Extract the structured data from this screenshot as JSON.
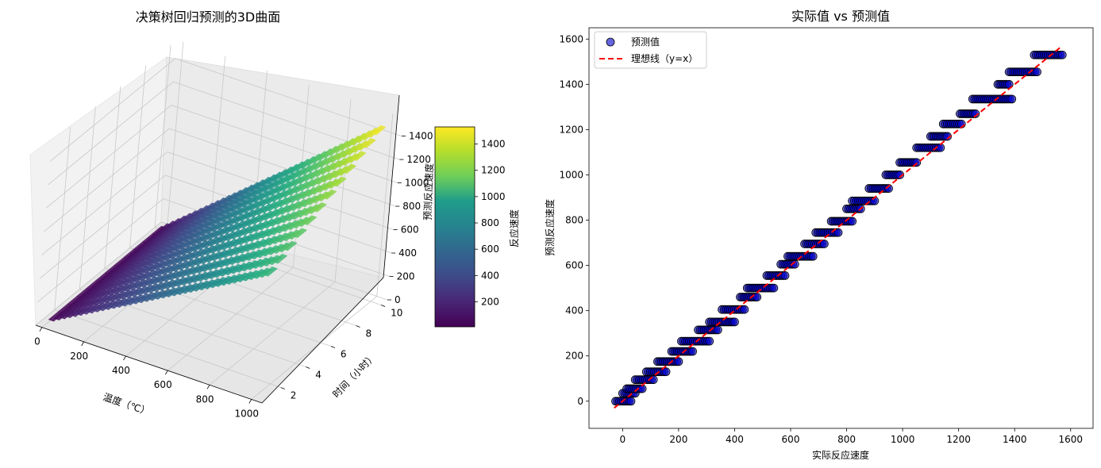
{
  "chart_data": [
    {
      "type": "surface3d",
      "title": "决策树回归预测的3D曲面",
      "xlabel": "温度（℃）",
      "ylabel": "时间（小时）",
      "zlabel": "预测反应速度",
      "xlim": [
        -30,
        1050
      ],
      "ylim": [
        0.5,
        10.5
      ],
      "zlim": [
        0,
        1560
      ],
      "xticks": [
        "0",
        "200",
        "400",
        "600",
        "800",
        "1000"
      ],
      "yticks": [
        "2",
        "4",
        "6",
        "8",
        "10"
      ],
      "zticks": [
        "0",
        "200",
        "400",
        "600",
        "800",
        "1000",
        "1200",
        "1400"
      ],
      "surface": {
        "x_range": [
          0,
          1000
        ],
        "y_range": [
          1,
          10
        ],
        "z_range": [
          10,
          1530
        ],
        "colormap": "viridis"
      },
      "colorbar": {
        "label": "反应速度",
        "range": [
          10,
          1530
        ],
        "ticks": [
          "200",
          "400",
          "600",
          "800",
          "1000",
          "1200",
          "1400"
        ]
      }
    },
    {
      "type": "scatter",
      "title": "实际值 vs 预测值",
      "xlabel": "实际反应速度",
      "ylabel": "预测反应速度",
      "xlim": [
        -120,
        1680
      ],
      "ylim": [
        -120,
        1650
      ],
      "xticks": [
        "0",
        "200",
        "400",
        "600",
        "800",
        "1000",
        "1200",
        "1400",
        "1600"
      ],
      "yticks": [
        "0",
        "200",
        "400",
        "600",
        "800",
        "1000",
        "1200",
        "1400",
        "1600"
      ],
      "legend": {
        "position": "top-left",
        "entries": [
          "预测值",
          "理想线（y=x）"
        ]
      },
      "ideal_line": {
        "x": [
          -30,
          1570
        ],
        "y": [
          -30,
          1570
        ],
        "color": "#ff0000",
        "style": "dashed"
      },
      "steps": [
        {
          "y": 0,
          "x": [
            -25,
            30
          ]
        },
        {
          "y": 35,
          "x": [
            0,
            45
          ]
        },
        {
          "y": 55,
          "x": [
            15,
            70
          ]
        },
        {
          "y": 95,
          "x": [
            45,
            110
          ]
        },
        {
          "y": 130,
          "x": [
            85,
            155
          ]
        },
        {
          "y": 175,
          "x": [
            125,
            200
          ]
        },
        {
          "y": 220,
          "x": [
            175,
            250
          ]
        },
        {
          "y": 265,
          "x": [
            210,
            310
          ]
        },
        {
          "y": 315,
          "x": [
            270,
            340
          ]
        },
        {
          "y": 350,
          "x": [
            310,
            400
          ]
        },
        {
          "y": 405,
          "x": [
            355,
            435
          ]
        },
        {
          "y": 460,
          "x": [
            420,
            480
          ]
        },
        {
          "y": 500,
          "x": [
            445,
            540
          ]
        },
        {
          "y": 555,
          "x": [
            515,
            580
          ]
        },
        {
          "y": 605,
          "x": [
            565,
            615
          ]
        },
        {
          "y": 640,
          "x": [
            590,
            680
          ]
        },
        {
          "y": 695,
          "x": [
            650,
            720
          ]
        },
        {
          "y": 745,
          "x": [
            690,
            770
          ]
        },
        {
          "y": 795,
          "x": [
            745,
            820
          ]
        },
        {
          "y": 850,
          "x": [
            800,
            850
          ]
        },
        {
          "y": 885,
          "x": [
            820,
            900
          ]
        },
        {
          "y": 940,
          "x": [
            880,
            950
          ]
        },
        {
          "y": 1000,
          "x": [
            940,
            990
          ]
        },
        {
          "y": 1055,
          "x": [
            990,
            1050
          ]
        },
        {
          "y": 1120,
          "x": [
            1050,
            1135
          ]
        },
        {
          "y": 1170,
          "x": [
            1100,
            1160
          ]
        },
        {
          "y": 1225,
          "x": [
            1145,
            1210
          ]
        },
        {
          "y": 1270,
          "x": [
            1205,
            1260
          ]
        },
        {
          "y": 1335,
          "x": [
            1250,
            1390
          ]
        },
        {
          "y": 1400,
          "x": [
            1340,
            1380
          ]
        },
        {
          "y": 1455,
          "x": [
            1380,
            1480
          ]
        },
        {
          "y": 1530,
          "x": [
            1470,
            1570
          ]
        }
      ],
      "marker": {
        "color": "#0000cc",
        "edge": "#000000",
        "alpha": 0.6
      }
    }
  ]
}
